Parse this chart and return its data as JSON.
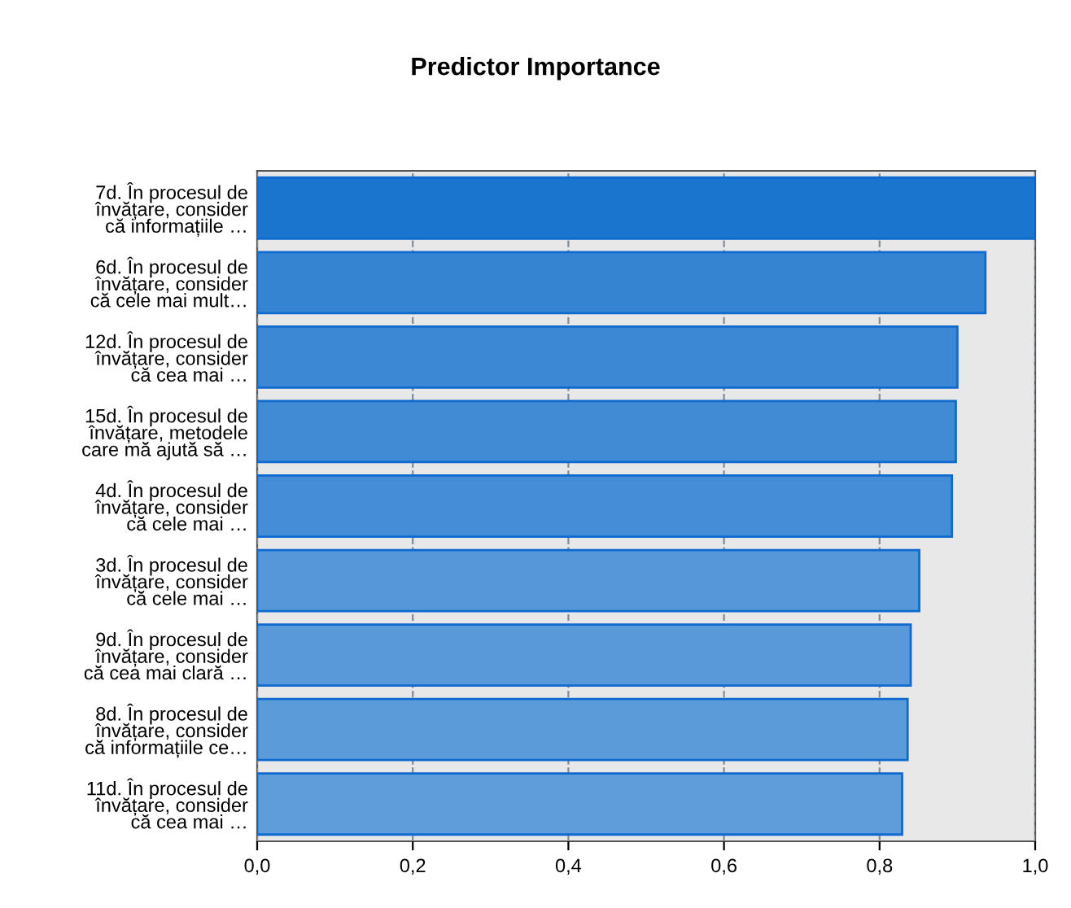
{
  "chart_data": {
    "type": "bar",
    "orientation": "horizontal",
    "title": "Predictor Importance",
    "categories": [
      "7d. În procesul de\nînvățare, consider\ncă informațiile …",
      "6d. În procesul de\nînvățare, consider\ncă cele mai mult…",
      "12d. În procesul de\nînvățare, consider\ncă cea mai …",
      "15d. În procesul de\nînvățare, metodele\ncare mă ajută să …",
      "4d. În procesul de\nînvățare, consider\ncă cele mai …",
      "3d. În procesul de\nînvățare, consider\ncă cele mai …",
      "9d. În procesul de\nînvățare, consider\ncă cea mai clară …",
      "8d. În procesul de\nînvățare, consider\ncă informațiile ce…",
      "11d. În procesul de\nînvățare, consider\ncă cea mai …"
    ],
    "values": [
      1.0,
      0.936,
      0.9,
      0.898,
      0.893,
      0.851,
      0.84,
      0.836,
      0.829
    ],
    "colors": [
      "#1a75cf",
      "#3584d2",
      "#3d88d4",
      "#418bd5",
      "#458dd6",
      "#5597d8",
      "#5999d9",
      "#5c9bd9",
      "#5f9cda"
    ],
    "xlim": [
      0.0,
      1.0
    ],
    "xticks": [
      {
        "value": 0.0,
        "label": "0,0"
      },
      {
        "value": 0.2,
        "label": "0,2"
      },
      {
        "value": 0.4,
        "label": "0,4"
      },
      {
        "value": 0.6,
        "label": "0,6"
      },
      {
        "value": 0.8,
        "label": "0,8"
      },
      {
        "value": 1.0,
        "label": "1,0"
      }
    ],
    "grid": "x",
    "legend": false
  }
}
